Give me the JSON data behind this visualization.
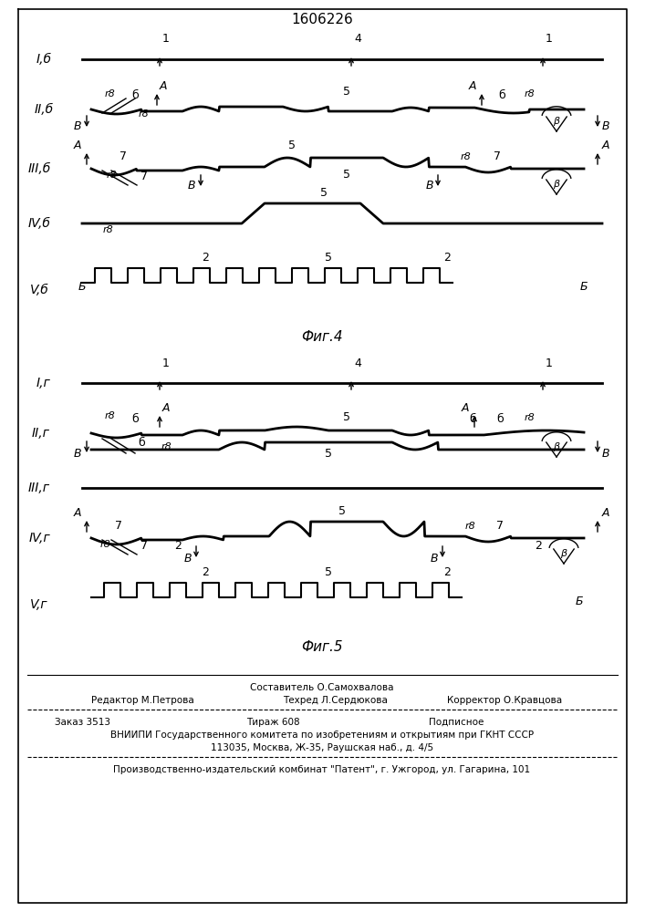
{
  "title": "1606226",
  "fig4_label": "Фиг.4",
  "fig5_label": "Фиг.5",
  "bg_color": "#ffffff",
  "line_color": "#000000",
  "footer_lines": [
    "Составитель О.Самохвалова",
    "Редактор М.Петрова",
    "Техред Л.Сердюкова",
    "Корректор О.Кравцова",
    "Заказ 3513",
    "Тираж 608",
    "Подписное",
    "ВНИИПИ Государственного комитета по изобретениям и открытиям при ГКНТ СССР",
    "113035, Москва, Ж-35, Раушская наб., д. 4/5",
    "Производственно-издательский комбинат \"Патент\", г. Ужгород, ул. Гагарина, 101"
  ]
}
